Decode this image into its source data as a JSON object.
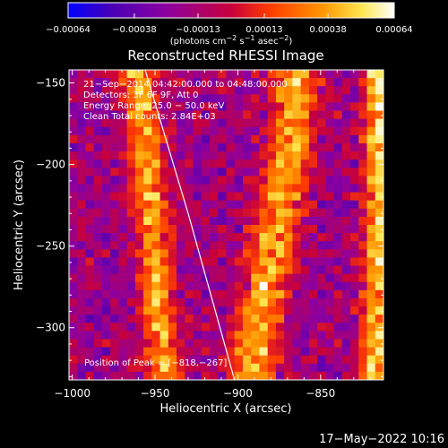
{
  "chart_data": {
    "type": "heatmap",
    "title": "Reconstructed RHESSI Image",
    "xlabel": "Heliocentric X (arcsec)",
    "ylabel": "Heliocentric Y (arcsec)",
    "xlim": [
      -1002,
      -812
    ],
    "ylim": [
      -332,
      -142
    ],
    "x_ticks": [
      -1000,
      -950,
      -900,
      -850
    ],
    "x_tick_labels": [
      "−1000",
      "−950",
      "−900",
      "−850"
    ],
    "y_ticks": [
      -150,
      -200,
      -250,
      -300
    ],
    "y_tick_labels": [
      "−150",
      "−200",
      "−250",
      "−300"
    ],
    "colorbar": {
      "range": [
        -0.00064,
        0.00064
      ],
      "ticks": [
        -0.00064,
        -0.00038,
        -0.00013,
        0.00013,
        0.00038,
        0.00064
      ],
      "tick_labels": [
        "−0.00064",
        "−0.00038",
        "−0.00013",
        "0.00013",
        "0.00038",
        "0.00064"
      ],
      "units_text": "(photons cm",
      "units_exp1": "−2",
      "units_mid": " s",
      "units_exp2": "−1",
      "units_end": " asec",
      "units_exp3": "−2",
      "units_close": ")",
      "colors": [
        "#0000ff",
        "#4b00b4",
        "#8c00a0",
        "#c8003c",
        "#ff3c00",
        "#ff9600",
        "#ffe650",
        "#ffffff"
      ]
    },
    "annotations": [
      "21−Sep−2014 04:42:00.000 to 04:48:00.000",
      "Detectors: 3F 6F 9F, Att 0",
      "Energy Range: 25.0 − 50.0 keV",
      "Clean     Total counts: 2.84E+03"
    ],
    "peak_label": "Position of Peak = [−818,−267]",
    "peak": [
      -818,
      -267
    ],
    "limb_points": [
      [
        -956,
        -142
      ],
      [
        -930,
        -230
      ],
      [
        -902,
        -332
      ]
    ],
    "emission_bands": [
      {
        "center": [
          [
            -960,
            -142
          ],
          [
            -955,
            -200
          ],
          [
            -950,
            -250
          ],
          [
            -947,
            -300
          ],
          [
            -945,
            -332
          ]
        ],
        "width": 10,
        "amplitude": 0.00055
      },
      {
        "center": [
          [
            -865,
            -150
          ],
          [
            -870,
            -200
          ],
          [
            -880,
            -260
          ],
          [
            -893,
            -332
          ]
        ],
        "width": 14,
        "amplitude": 0.00054
      },
      {
        "center": [
          [
            -815,
            -150
          ],
          [
            -814,
            -220
          ],
          [
            -815,
            -275
          ],
          [
            -818,
            -332
          ]
        ],
        "width": 9,
        "amplitude": 0.00064
      }
    ],
    "grid": false,
    "legend": "none"
  },
  "footer": {
    "timestamp": "17−May−2022 10:16"
  }
}
